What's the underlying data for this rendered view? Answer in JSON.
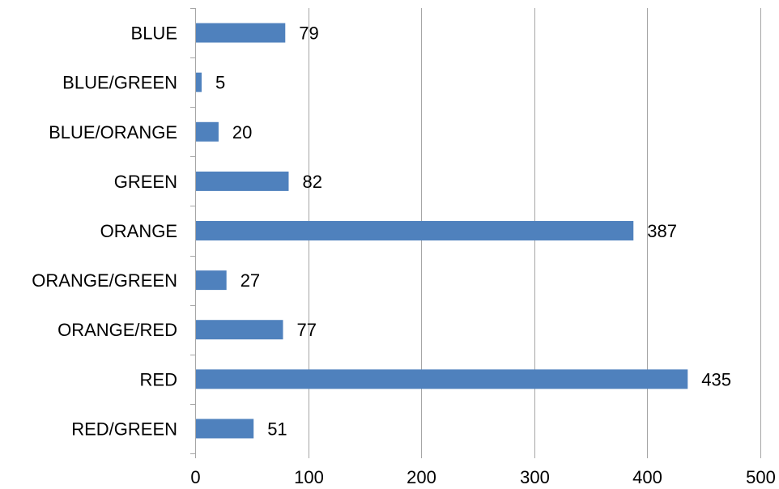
{
  "chart_data": {
    "type": "bar",
    "orientation": "horizontal",
    "categories": [
      "BLUE",
      "BLUE/GREEN",
      "BLUE/ORANGE",
      "GREEN",
      "ORANGE",
      "ORANGE/GREEN",
      "ORANGE/RED",
      "RED",
      "RED/GREEN"
    ],
    "values": [
      79,
      5,
      20,
      82,
      387,
      27,
      77,
      435,
      51
    ],
    "data_labels": [
      "79",
      "5",
      "20",
      "82",
      "387",
      "27",
      "77",
      "435",
      "51"
    ],
    "xlim": [
      0,
      500
    ],
    "x_ticks": [
      "0",
      "100",
      "200",
      "300",
      "400",
      "500"
    ],
    "title": "",
    "xlabel": "",
    "ylabel": "",
    "grid": "vertical",
    "legend": "none",
    "bar_color": "#4f81bd",
    "grid_color": "#a6a6a6",
    "axis_color": "#a6a6a6"
  }
}
